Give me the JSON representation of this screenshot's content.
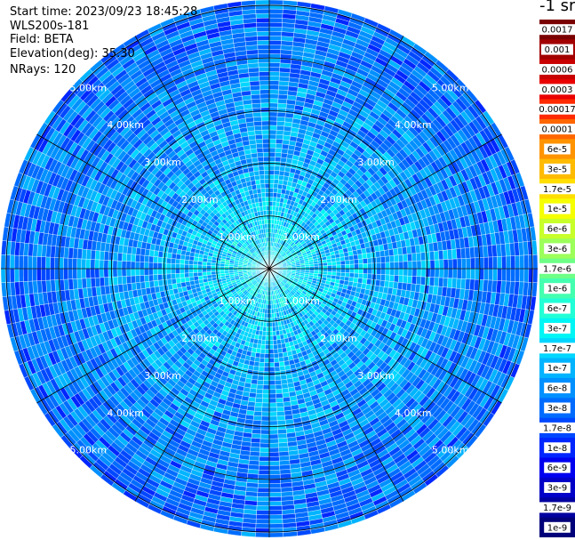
{
  "header": {
    "start_time": "Start time: 2023/09/23 18:45:28",
    "instrument": "WLS200s-181",
    "field": "Field: BETA",
    "elevation": "Elevation(deg): 35.30",
    "nrays": "NRays: 120"
  },
  "colorbar": {
    "unit_label": "-1 sr",
    "levels": [
      {
        "label": "0.0017",
        "color": "#7a0000"
      },
      {
        "label": "0.001",
        "color": "#a30000"
      },
      {
        "label": "0.0006",
        "color": "#c80000"
      },
      {
        "label": "0.0003",
        "color": "#ea0000"
      },
      {
        "label": "0.00017",
        "color": "#ff2a00"
      },
      {
        "label": "0.0001",
        "color": "#ff6600"
      },
      {
        "label": "6e-5",
        "color": "#ff9400"
      },
      {
        "label": "3e-5",
        "color": "#ffbb00"
      },
      {
        "label": "1.7e-5",
        "color": "#ffde00"
      },
      {
        "label": "1e-5",
        "color": "#f6ff00"
      },
      {
        "label": "6e-6",
        "color": "#c8ff2a"
      },
      {
        "label": "3e-6",
        "color": "#9cff5a"
      },
      {
        "label": "1.7e-6",
        "color": "#6eff86"
      },
      {
        "label": "1e-6",
        "color": "#44ffb0"
      },
      {
        "label": "6e-7",
        "color": "#22ffd6"
      },
      {
        "label": "3e-7",
        "color": "#00f5f5"
      },
      {
        "label": "1.7e-7",
        "color": "#00d6ff"
      },
      {
        "label": "1e-7",
        "color": "#00b4ff"
      },
      {
        "label": "6e-8",
        "color": "#0090ff"
      },
      {
        "label": "3e-8",
        "color": "#006cff"
      },
      {
        "label": "1.7e-8",
        "color": "#0048ff"
      },
      {
        "label": "1e-8",
        "color": "#0026ff"
      },
      {
        "label": "6e-9",
        "color": "#0000f0"
      },
      {
        "label": "3e-9",
        "color": "#0000c8"
      },
      {
        "label": "1.7e-9",
        "color": "#0000a0"
      },
      {
        "label": "1e-9",
        "color": "#00007a"
      }
    ]
  },
  "chart_data": {
    "type": "heatmap",
    "projection": "polar-ppi",
    "field": "BETA",
    "n_rays": 120,
    "range_rings_km": [
      1,
      2,
      3,
      4,
      5
    ],
    "ring_labels": [
      "1.00km",
      "2.00km",
      "3.00km",
      "4.00km",
      "5.00km"
    ],
    "max_range_km": 5.1,
    "azimuth_spokes_deg": [
      0,
      30,
      60,
      90,
      120,
      150,
      180,
      210,
      240,
      270,
      300,
      330
    ],
    "color_scale": "log",
    "value_range": [
      1e-09,
      0.0017
    ],
    "typical_values_by_range_km": [
      {
        "range_km": 0.5,
        "beta": 3e-07
      },
      {
        "range_km": 1.0,
        "beta": 2e-07
      },
      {
        "range_km": 2.0,
        "beta": 1e-07
      },
      {
        "range_km": 3.0,
        "beta": 8e-08
      },
      {
        "range_km": 4.0,
        "beta": 5e-08
      },
      {
        "range_km": 5.0,
        "beta": 4e-08
      }
    ],
    "grid": true
  }
}
